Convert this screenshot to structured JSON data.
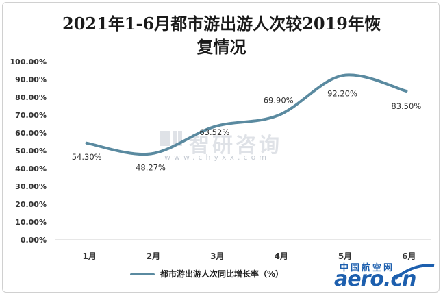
{
  "title_line1": "2021年1-6月都市游出游人次较2019年恢",
  "title_line2": "复情况",
  "watermark": {
    "brand": "智研咨询",
    "url": "www.chyxx.com"
  },
  "logo": {
    "cn": "中国航空网",
    "en": "aero.cn"
  },
  "colors": {
    "series": "#5a8aa0",
    "axis": "#cfcfcf",
    "text": "#333333",
    "logo": "#1d5fae"
  },
  "chart_data": {
    "type": "line",
    "title": "2021年1-6月都市游出游人次较2019年恢复情况",
    "categories": [
      "1月",
      "2月",
      "3月",
      "4月",
      "5月",
      "6月"
    ],
    "series": [
      {
        "name": "都市游出游人次同比增长率（%）",
        "values": [
          54.3,
          48.27,
          63.52,
          69.9,
          92.2,
          83.5
        ]
      }
    ],
    "data_labels": [
      "54.30%",
      "48.27%",
      "63.52%",
      "69.90%",
      "92.20%",
      "83.50%"
    ],
    "y_ticks": [
      "0.00%",
      "10.00%",
      "20.00%",
      "30.00%",
      "40.00%",
      "50.00%",
      "60.00%",
      "70.00%",
      "80.00%",
      "90.00%",
      "100.00%"
    ],
    "ylim": [
      0,
      100
    ],
    "grid": false,
    "smooth": true,
    "legend": "bottom"
  }
}
